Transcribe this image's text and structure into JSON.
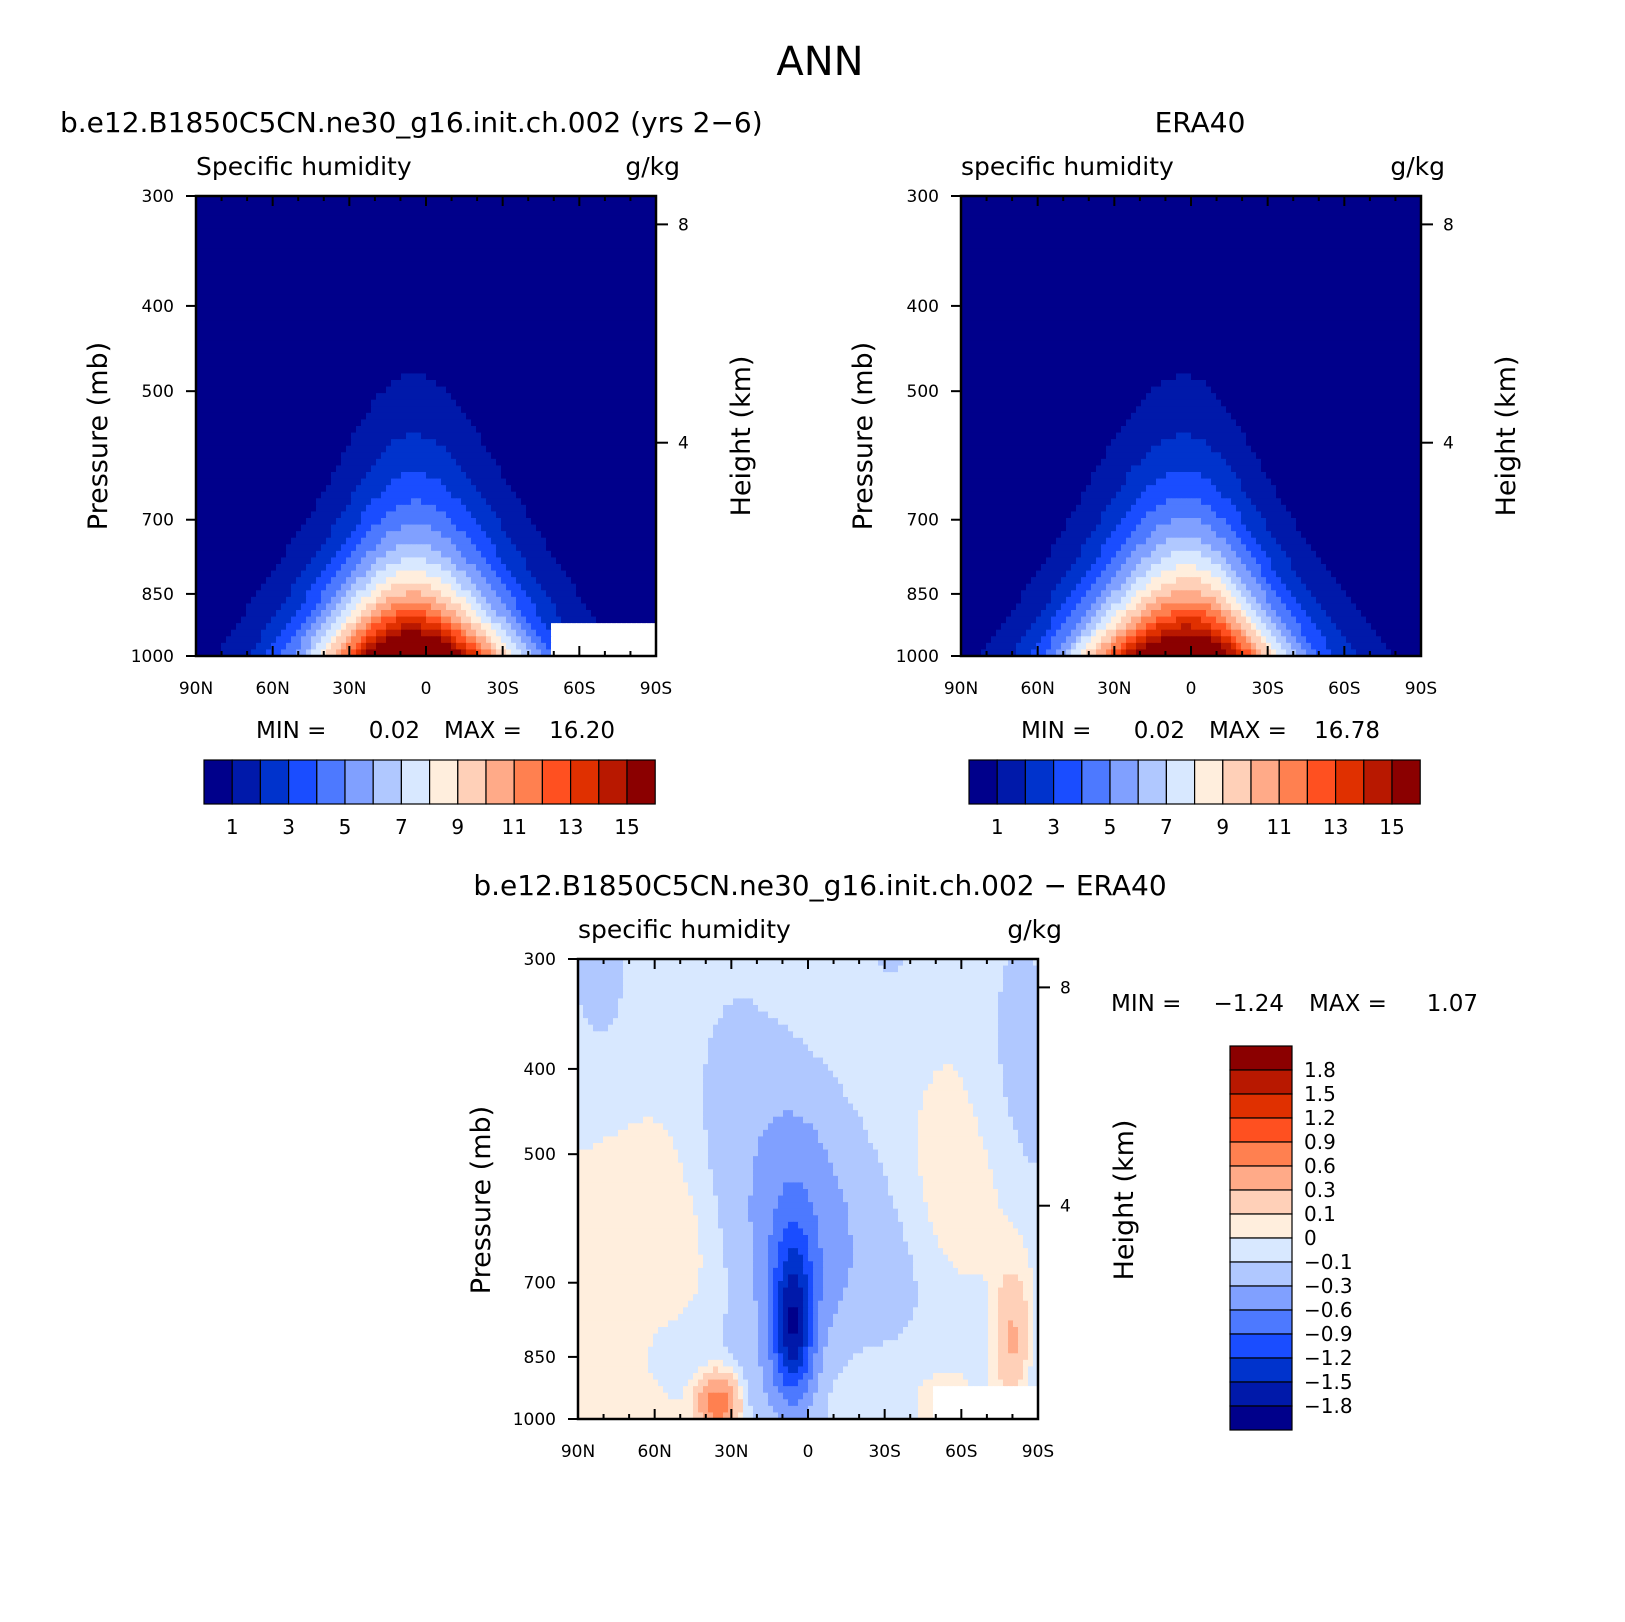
{
  "figure_title": "ANN",
  "colors": {
    "abs_palette": [
      "#00008b",
      "#0019aa",
      "#0033cc",
      "#1a4dff",
      "#4d79ff",
      "#80a0ff",
      "#b0c8ff",
      "#d8e8ff",
      "#ffeedd",
      "#ffd0b8",
      "#ffaa88",
      "#ff8050",
      "#ff5020",
      "#e03000",
      "#b81800",
      "#8b0000"
    ],
    "diff_palette": [
      "#00008b",
      "#0019aa",
      "#0033cc",
      "#1a4dff",
      "#4d79ff",
      "#80a0ff",
      "#b0c8ff",
      "#d8e8ff",
      "#ffeedd",
      "#ffd0b8",
      "#ffaa88",
      "#ff8050",
      "#ff5020",
      "#e03000",
      "#b81800",
      "#8b0000"
    ]
  },
  "chart_data": [
    {
      "type": "heatmap",
      "panel": "model",
      "title": "b.e12.B1850C5CN.ne30_g16.init.ch.002 (yrs 2−6)",
      "left_label": "Specific humidity",
      "right_label": "g/kg",
      "ylabel": "Pressure (mb)",
      "y2label": "Height (km)",
      "x_ticks": [
        "90N",
        "60N",
        "30N",
        "0",
        "30S",
        "60S",
        "90S"
      ],
      "x_tick_values": [
        90,
        60,
        30,
        0,
        -30,
        -60,
        -90
      ],
      "y_ticks": [
        "300",
        "400",
        "500",
        "700",
        "850",
        "1000"
      ],
      "y_tick_values": [
        300,
        400,
        500,
        700,
        850,
        1000
      ],
      "y2_ticks": [
        "8",
        "4"
      ],
      "y2_tick_values": [
        8,
        4
      ],
      "min_label": "MIN =",
      "min_value": "0.02",
      "max_label": "MAX =",
      "max_value": "16.20",
      "peak_value": 16.2,
      "masked_region": {
        "lat_from": -48,
        "lat_to": -90,
        "p_from": 925,
        "p_to": 1000
      },
      "colorbar_labels": [
        "1",
        "3",
        "5",
        "7",
        "9",
        "11",
        "13",
        "15"
      ],
      "colorbar_levels": [
        1,
        2,
        3,
        4,
        5,
        6,
        7,
        8,
        9,
        10,
        11,
        12,
        13,
        14,
        15
      ]
    },
    {
      "type": "heatmap",
      "panel": "obs",
      "title": "ERA40",
      "left_label": "specific humidity",
      "right_label": "g/kg",
      "ylabel": "Pressure (mb)",
      "y2label": "Height (km)",
      "x_ticks": [
        "90N",
        "60N",
        "30N",
        "0",
        "30S",
        "60S",
        "90S"
      ],
      "x_tick_values": [
        90,
        60,
        30,
        0,
        -30,
        -60,
        -90
      ],
      "y_ticks": [
        "300",
        "400",
        "500",
        "700",
        "850",
        "1000"
      ],
      "y_tick_values": [
        300,
        400,
        500,
        700,
        850,
        1000
      ],
      "y2_ticks": [
        "8",
        "4"
      ],
      "y2_tick_values": [
        8,
        4
      ],
      "min_label": "MIN =",
      "min_value": "0.02",
      "max_label": "MAX =",
      "max_value": "16.78",
      "peak_value": 16.78,
      "colorbar_labels": [
        "1",
        "3",
        "5",
        "7",
        "9",
        "11",
        "13",
        "15"
      ],
      "colorbar_levels": [
        1,
        2,
        3,
        4,
        5,
        6,
        7,
        8,
        9,
        10,
        11,
        12,
        13,
        14,
        15
      ]
    },
    {
      "type": "heatmap",
      "panel": "difference",
      "title": "b.e12.B1850C5CN.ne30_g16.init.ch.002 − ERA40",
      "left_label": "specific humidity",
      "right_label": "g/kg",
      "ylabel": "Pressure (mb)",
      "y2label": "Height (km)",
      "x_ticks": [
        "90N",
        "60N",
        "30N",
        "0",
        "30S",
        "60S",
        "90S"
      ],
      "x_tick_values": [
        90,
        60,
        30,
        0,
        -30,
        -60,
        -90
      ],
      "y_ticks": [
        "300",
        "400",
        "500",
        "700",
        "850",
        "1000"
      ],
      "y_tick_values": [
        300,
        400,
        500,
        700,
        850,
        1000
      ],
      "y2_ticks": [
        "8",
        "4"
      ],
      "y2_tick_values": [
        8,
        4
      ],
      "min_label": "MIN =",
      "min_value": "−1.24",
      "max_label": "MAX =",
      "max_value": "1.07",
      "masked_region": {
        "lat_from": -48,
        "lat_to": -90,
        "p_from": 925,
        "p_to": 1000
      },
      "colorbar_labels": [
        "1.8",
        "1.5",
        "1.2",
        "0.9",
        "0.6",
        "0.3",
        "0.1",
        "0",
        "−0.1",
        "−0.3",
        "−0.6",
        "−0.9",
        "−1.2",
        "−1.5",
        "−1.8"
      ],
      "colorbar_levels": [
        1.8,
        1.5,
        1.2,
        0.9,
        0.6,
        0.3,
        0.1,
        0,
        -0.1,
        -0.3,
        -0.6,
        -0.9,
        -1.2,
        -1.5,
        -1.8
      ]
    }
  ]
}
